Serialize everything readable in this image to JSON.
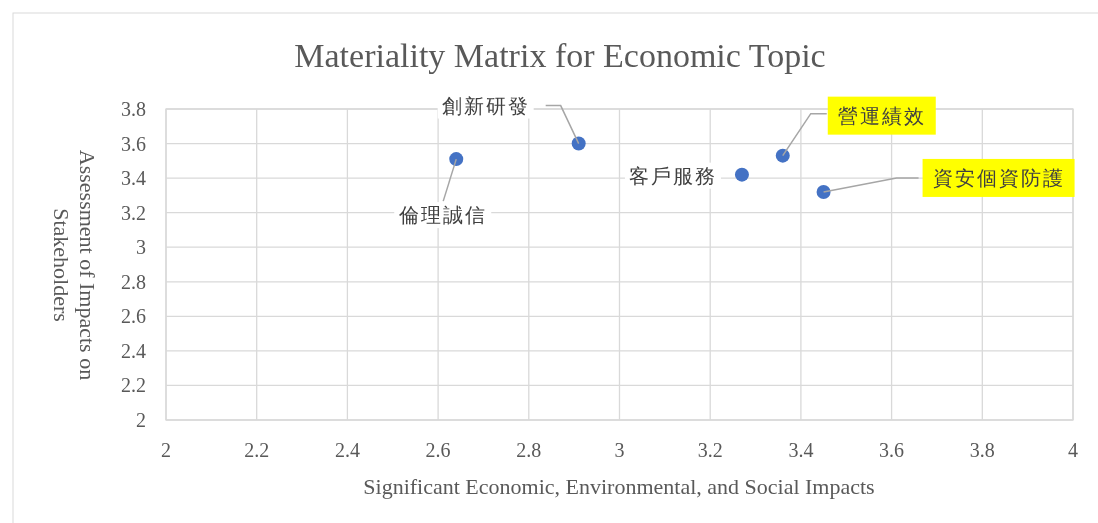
{
  "chart_data": {
    "type": "scatter",
    "title": "Materiality Matrix for Economic Topic",
    "xlabel": "Significant Economic, Environmental, and Social Impacts",
    "ylabel": "Assessment of Impacts on Stakeholders",
    "x": [
      2.64,
      2.91,
      3.27,
      3.36,
      3.45
    ],
    "series": [
      {
        "color": "#4472c4",
        "values": [
          3.51,
          3.6,
          3.42,
          3.53,
          3.32
        ]
      }
    ],
    "annotations": [
      {
        "text": "倫理誠信",
        "x": 2.64,
        "y": 3.51
      },
      {
        "text": "創新研發",
        "x": 2.91,
        "y": 3.6
      },
      {
        "text": "客戶服務",
        "x": 3.27,
        "y": 3.42
      },
      {
        "text": "營運績效",
        "x": 3.36,
        "y": 3.53
      },
      {
        "text": "資安個資防護",
        "x": 3.45,
        "y": 3.32
      }
    ],
    "xlim": [
      2,
      4
    ],
    "xticks": [
      2,
      2.2,
      2.4,
      2.6,
      2.8,
      3,
      3.2,
      3.4,
      3.6,
      3.8,
      4
    ],
    "ylim": [
      2,
      3.8
    ],
    "yticks": [
      2,
      2.2,
      2.4,
      2.6,
      2.8,
      3,
      3.2,
      3.4,
      3.6,
      3.8
    ],
    "grid": true,
    "marker": "circle"
  }
}
